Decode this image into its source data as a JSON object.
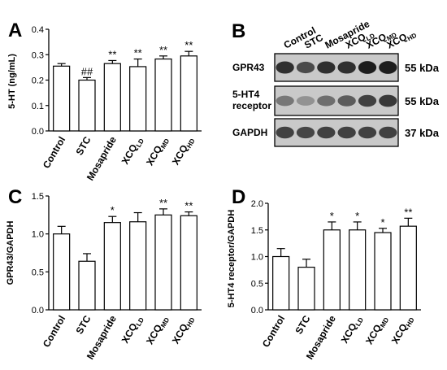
{
  "panel_labels": {
    "a": "A",
    "b": "B",
    "c": "C",
    "d": "D"
  },
  "blot": {
    "lanes": [
      "Control",
      "STC",
      "Mosapride",
      "XCQLD",
      "XCQMD",
      "XCQHD"
    ],
    "rows": [
      {
        "label": "GPR43",
        "size": "55 kDa",
        "intensities": [
          0.85,
          0.7,
          0.85,
          0.85,
          0.95,
          0.95
        ]
      },
      {
        "label": "5-HT4 receptor",
        "size": "55 kDa",
        "intensities": [
          0.45,
          0.3,
          0.5,
          0.6,
          0.75,
          0.8
        ]
      },
      {
        "label": "GAPDH",
        "size": "37 kDa",
        "intensities": [
          0.75,
          0.72,
          0.75,
          0.75,
          0.75,
          0.75
        ]
      }
    ]
  },
  "chart_data": [
    {
      "panel": "A",
      "type": "bar",
      "categories": [
        "Control",
        "STC",
        "Mosapride",
        "XCQLD",
        "XCQMD",
        "XCQHD"
      ],
      "values": [
        0.255,
        0.2,
        0.265,
        0.253,
        0.283,
        0.295
      ],
      "errors": [
        0.01,
        0.01,
        0.012,
        0.03,
        0.012,
        0.018
      ],
      "annotations": [
        "",
        "##",
        "**",
        "**",
        "**",
        "**"
      ],
      "ylabel": "5-HT (ng/mL)",
      "ylim": [
        0,
        0.4
      ],
      "yticks": [
        "0.0",
        "0.1",
        "0.2",
        "0.3",
        "0.4"
      ]
    },
    {
      "panel": "C",
      "type": "bar",
      "categories": [
        "Control",
        "STC",
        "Mosapride",
        "XCQLD",
        "XCQMD",
        "XCQHD"
      ],
      "values": [
        1.0,
        0.64,
        1.15,
        1.16,
        1.25,
        1.24
      ],
      "errors": [
        0.1,
        0.1,
        0.08,
        0.12,
        0.08,
        0.05
      ],
      "annotations": [
        "",
        "",
        "*",
        "",
        "**",
        "**"
      ],
      "ylabel": "GPR43/GAPDH",
      "ylim": [
        0,
        1.5
      ],
      "yticks": [
        "0.0",
        "0.5",
        "1.0",
        "1.5"
      ]
    },
    {
      "panel": "D",
      "type": "bar",
      "categories": [
        "Control",
        "STC",
        "Mosapride",
        "XCQLD",
        "XCQMD",
        "XCQHD"
      ],
      "values": [
        1.0,
        0.8,
        1.5,
        1.5,
        1.45,
        1.57
      ],
      "errors": [
        0.15,
        0.15,
        0.15,
        0.15,
        0.08,
        0.15
      ],
      "annotations": [
        "",
        "",
        "*",
        "*",
        "*",
        "**"
      ],
      "ylabel": "5-HT4 receptor/GAPDH",
      "ylim": [
        0,
        2.0
      ],
      "yticks": [
        "0.0",
        "0.5",
        "1.0",
        "1.5",
        "2.0"
      ]
    }
  ]
}
